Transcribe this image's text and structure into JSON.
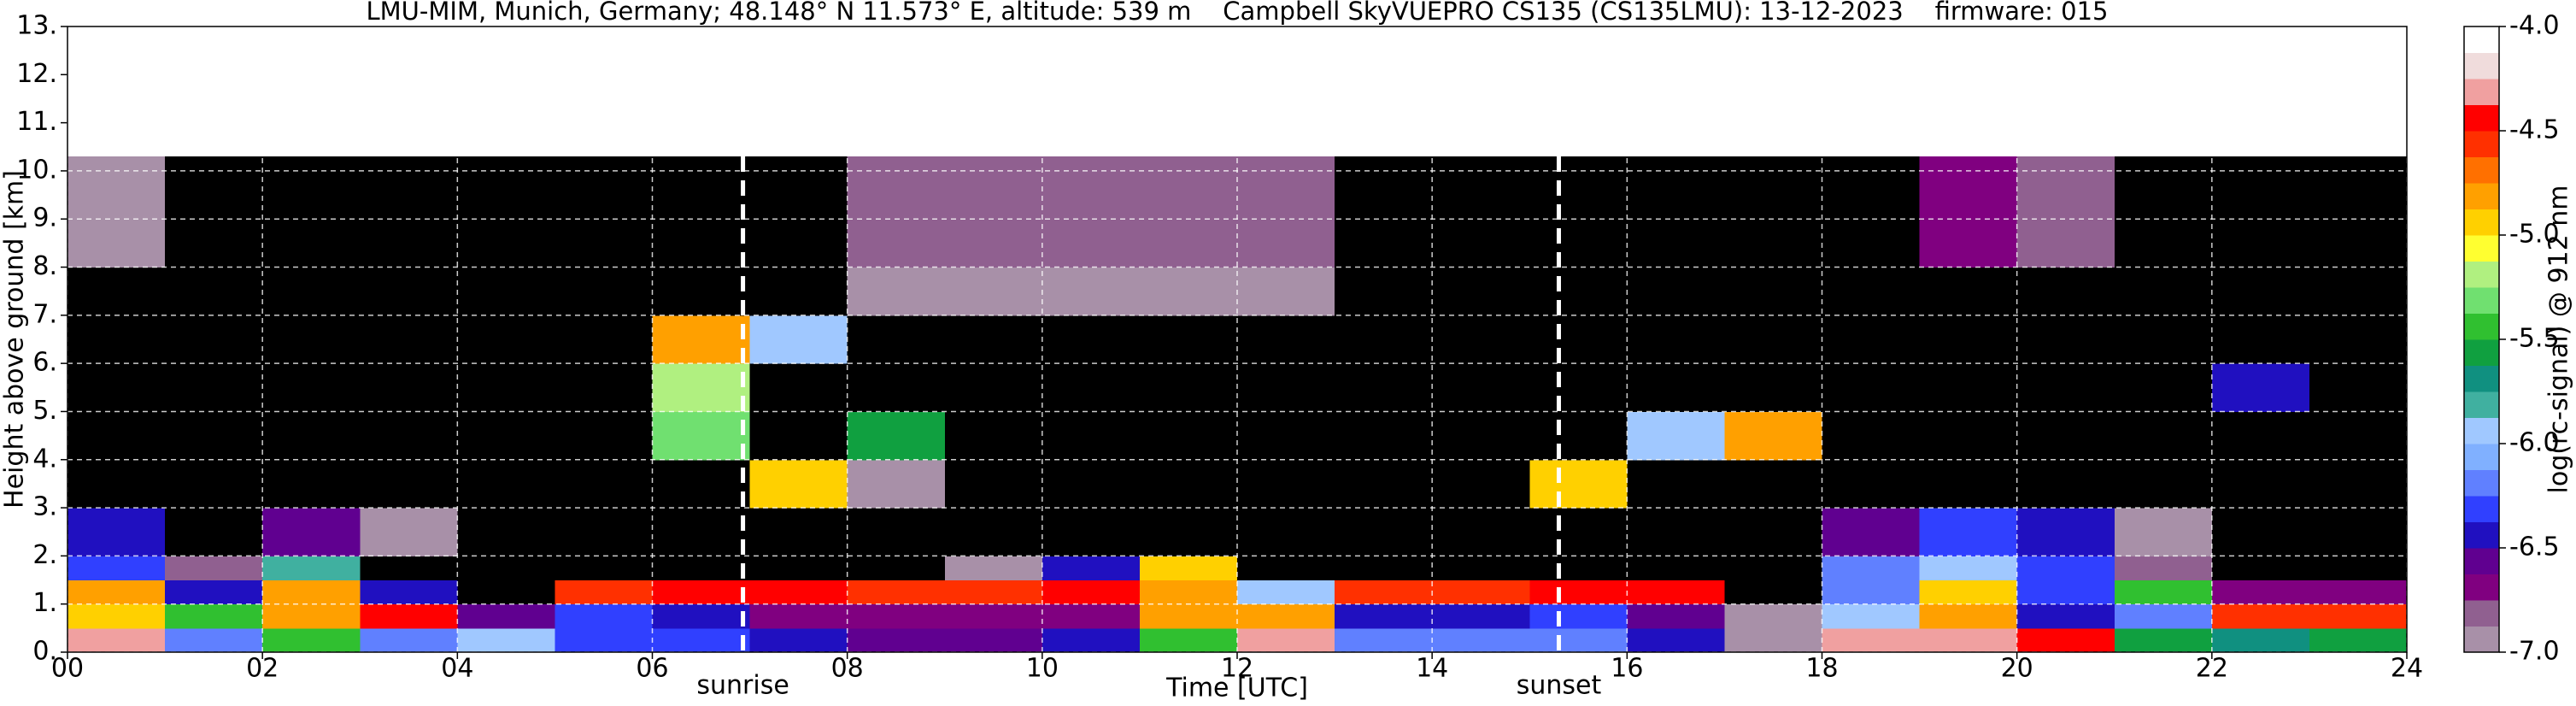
{
  "chart_data": {
    "type": "heatmap",
    "title": "LMU-MIM, Munich, Germany; 48.148° N 11.573° E, altitude: 539 m    Campbell SkyVUEPRO CS135 (CS135LMU): 13-12-2023    firmware: 015",
    "x_label": "Time [UTC]",
    "y_label": "Height above ground [km]",
    "colorbar_label": "log(rc-signal) @ 912 nm",
    "xlim": [
      0,
      24
    ],
    "ylim": [
      0,
      13
    ],
    "xticks": [
      {
        "value": 0,
        "label": "00"
      },
      {
        "value": 2,
        "label": "02"
      },
      {
        "value": 4,
        "label": "04"
      },
      {
        "value": 6,
        "label": "06"
      },
      {
        "value": 8,
        "label": "08"
      },
      {
        "value": 10,
        "label": "10"
      },
      {
        "value": 12,
        "label": "12"
      },
      {
        "value": 14,
        "label": "14"
      },
      {
        "value": 16,
        "label": "16"
      },
      {
        "value": 18,
        "label": "18"
      },
      {
        "value": 20,
        "label": "20"
      },
      {
        "value": 22,
        "label": "22"
      },
      {
        "value": 24,
        "label": "24"
      }
    ],
    "yticks": [
      {
        "value": 0,
        "label": "0."
      },
      {
        "value": 1,
        "label": "1."
      },
      {
        "value": 2,
        "label": "2."
      },
      {
        "value": 3,
        "label": "3."
      },
      {
        "value": 4,
        "label": "4."
      },
      {
        "value": 5,
        "label": "5."
      },
      {
        "value": 6,
        "label": "6."
      },
      {
        "value": 7,
        "label": "7."
      },
      {
        "value": 8,
        "label": "8."
      },
      {
        "value": 9,
        "label": "9."
      },
      {
        "value": 10,
        "label": "10."
      },
      {
        "value": 11,
        "label": "11."
      },
      {
        "value": 12,
        "label": "12."
      },
      {
        "value": 13,
        "label": "13."
      }
    ],
    "grid": true,
    "clim": [
      -7,
      -4
    ],
    "cticks": [
      {
        "value": -7,
        "label": "-7.0"
      },
      {
        "value": -6.5,
        "label": "-6.5"
      },
      {
        "value": -6,
        "label": "-6.0"
      },
      {
        "value": -5.5,
        "label": "-5.5"
      },
      {
        "value": -5,
        "label": "-5.0"
      },
      {
        "value": -4.5,
        "label": "-4.5"
      },
      {
        "value": -4,
        "label": "-4.0"
      }
    ],
    "levels": [
      -7,
      -6.875,
      -6.75,
      -6.625,
      -6.5,
      -6.375,
      -6.25,
      -6.125,
      -6,
      -5.875,
      -5.75,
      -5.625,
      -5.5,
      -5.375,
      -5.25,
      -5.125,
      -5,
      -4.875,
      -4.75,
      -4.625,
      -4.5,
      -4.375,
      -4.25,
      -4.125,
      -4
    ],
    "colors": [
      "#a890a8",
      "#906090",
      "#800080",
      "#600090",
      "#2010c0",
      "#3040ff",
      "#6080ff",
      "#80b0ff",
      "#a0c8ff",
      "#40b0a0",
      "#109080",
      "#10a040",
      "#30c030",
      "#70e070",
      "#b0f080",
      "#ffff30",
      "#ffd000",
      "#ffa000",
      "#ff7000",
      "#ff3000",
      "#ff0000",
      "#f0a0a0",
      "#f0dcdc",
      "#ffffff"
    ],
    "under_color": "#000000",
    "time_edges": [
      0,
      1,
      2,
      3,
      4,
      5,
      6,
      7,
      8,
      9,
      10,
      11,
      12,
      13,
      14,
      15,
      16,
      17,
      18,
      19,
      20,
      21,
      22,
      23,
      24
    ],
    "height_edges": [
      0,
      0.5,
      1,
      1.5,
      2,
      3,
      4,
      5,
      6,
      7,
      8,
      10.3
    ],
    "values": [
      [
        -4.3,
        -6.2,
        -5.5,
        -6.2,
        -6.0,
        -6.3,
        -6.3,
        -6.5,
        -6.6,
        -6.6,
        -6.5,
        -5.5,
        -4.3,
        -6.2,
        -6.2,
        -6.2,
        -6.4,
        -6.9,
        -4.3,
        -4.3,
        -4.4,
        -5.6,
        -5.7,
        -5.6
      ],
      [
        -5.0,
        -5.5,
        -4.8,
        -4.5,
        -6.6,
        -6.3,
        -6.4,
        -6.7,
        -6.7,
        -6.7,
        -6.7,
        -4.8,
        -4.8,
        -6.4,
        -6.4,
        -6.3,
        -6.6,
        -6.9,
        -6.0,
        -4.8,
        -6.4,
        -6.2,
        -4.6,
        -4.6
      ],
      [
        -4.8,
        -6.4,
        -4.8,
        -6.5,
        -7.2,
        -4.6,
        -4.5,
        -4.5,
        -4.6,
        -4.6,
        -4.5,
        -4.8,
        -6.0,
        -4.6,
        -4.6,
        -4.5,
        -4.5,
        -7.2,
        -6.2,
        -5.0,
        -6.3,
        -5.5,
        -6.7,
        -6.7
      ],
      [
        -6.3,
        -6.8,
        -5.8,
        -7.2,
        -7.2,
        -7.2,
        -7.2,
        -7.2,
        -7.2,
        -6.9,
        -6.5,
        -5.0,
        -7.2,
        -7.2,
        -7.2,
        -7.2,
        -7.2,
        -7.2,
        -6.2,
        -6.0,
        -6.3,
        -6.8,
        -7.2,
        -7.2
      ],
      [
        -6.5,
        -7.2,
        -6.6,
        -6.9,
        -7.2,
        -7.2,
        -7.2,
        -7.2,
        -7.2,
        -7.2,
        -7.2,
        -7.2,
        -7.2,
        -7.2,
        -7.2,
        -7.2,
        -7.2,
        -7.2,
        -6.6,
        -6.3,
        -6.5,
        -6.9,
        -7.2,
        -7.2
      ],
      [
        -7.2,
        -7.2,
        -7.2,
        -7.2,
        -7.2,
        -7.2,
        -7.2,
        -5.0,
        -6.9,
        -7.2,
        -7.2,
        -7.2,
        -7.2,
        -7.2,
        -7.2,
        -5.0,
        -7.2,
        -7.2,
        -7.2,
        -7.2,
        -7.2,
        -7.2,
        -7.2,
        -7.2
      ],
      [
        -7.2,
        -7.2,
        -7.2,
        -7.2,
        -7.2,
        -7.2,
        -5.3,
        -7.2,
        -5.6,
        -7.2,
        -7.2,
        -7.2,
        -7.2,
        -7.2,
        -7.2,
        -7.2,
        -6.0,
        -4.8,
        -7.2,
        -7.2,
        -7.2,
        -7.2,
        -7.2,
        -7.2
      ],
      [
        -7.2,
        -7.2,
        -7.2,
        -7.2,
        -7.2,
        -7.2,
        -5.2,
        -7.2,
        -7.2,
        -7.2,
        -7.2,
        -7.2,
        -7.2,
        -7.2,
        -7.2,
        -7.2,
        -7.2,
        -7.2,
        -7.2,
        -7.2,
        -7.2,
        -7.2,
        -6.5,
        -7.2
      ],
      [
        -7.2,
        -7.2,
        -7.2,
        -7.2,
        -7.2,
        -7.2,
        -4.8,
        -6.0,
        -7.2,
        -7.2,
        -7.2,
        -7.2,
        -7.2,
        -7.2,
        -7.2,
        -7.2,
        -7.2,
        -7.2,
        -7.2,
        -7.2,
        -7.2,
        -7.2,
        -7.2,
        -7.2
      ],
      [
        -7.2,
        -7.2,
        -7.2,
        -7.2,
        -7.2,
        -7.2,
        -7.2,
        -7.2,
        -6.9,
        -6.9,
        -6.9,
        -6.9,
        -6.9,
        -7.2,
        -7.2,
        -7.2,
        -7.2,
        -7.2,
        -7.2,
        -7.2,
        -7.2,
        -7.2,
        -7.2,
        -7.2
      ],
      [
        -6.9,
        -7.2,
        -7.2,
        -7.2,
        -7.2,
        -7.2,
        -7.2,
        -7.2,
        -6.8,
        -6.8,
        -6.8,
        -6.8,
        -6.8,
        -7.2,
        -7.2,
        -7.2,
        -7.2,
        -7.2,
        -7.2,
        -6.7,
        -6.8,
        -7.2,
        -7.2,
        -7.2
      ]
    ],
    "annotations": [
      {
        "text": "sunrise",
        "x": 6.93
      },
      {
        "text": "sunset",
        "x": 15.3
      }
    ]
  }
}
